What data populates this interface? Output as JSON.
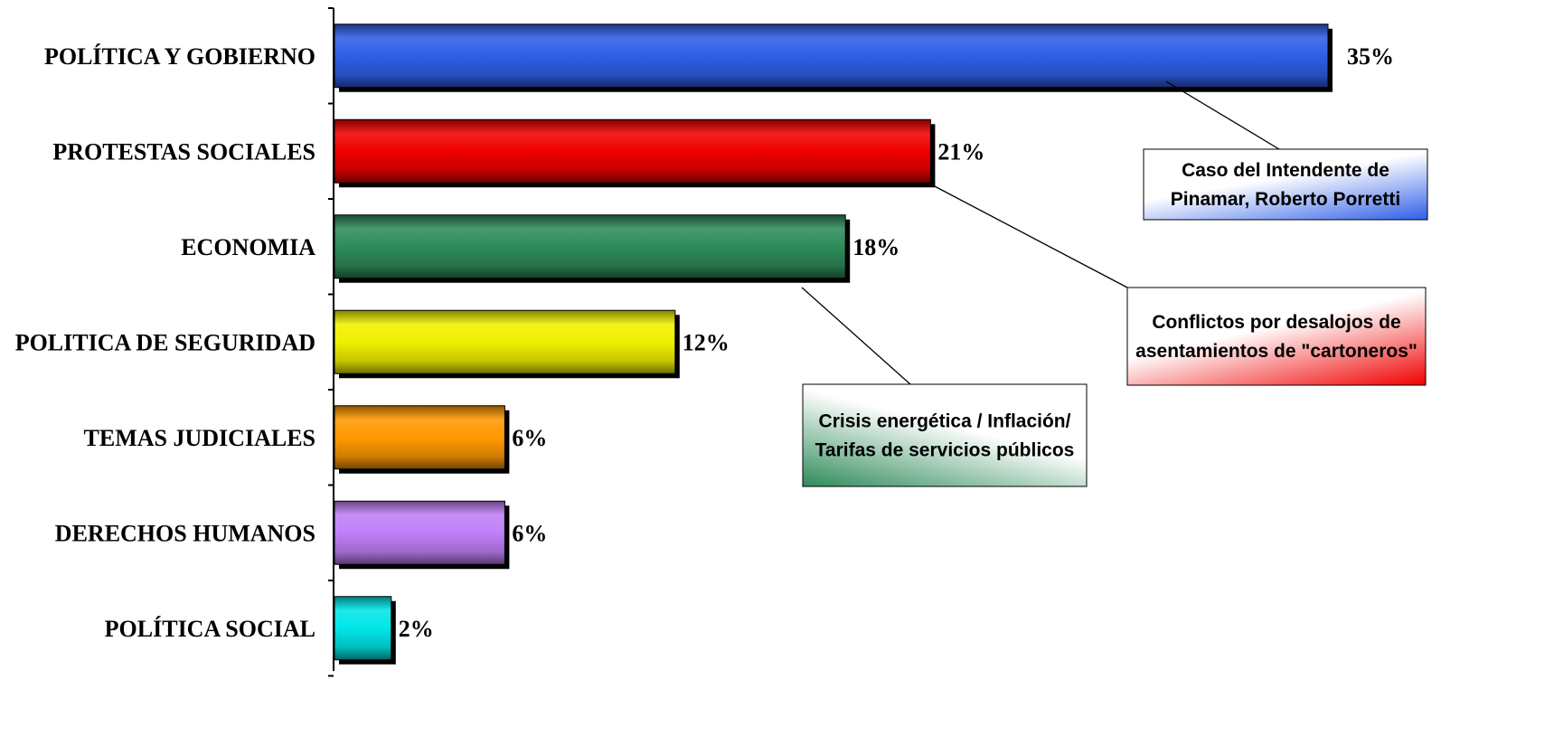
{
  "chart_data": {
    "type": "bar",
    "orientation": "horizontal",
    "categories": [
      "POLÍTICA Y GOBIERNO",
      "PROTESTAS SOCIALES",
      "ECONOMIA",
      "POLITICA DE SEGURIDAD",
      "TEMAS JUDICIALES",
      "DERECHOS HUMANOS",
      "POLÍTICA SOCIAL"
    ],
    "values": [
      35,
      21,
      18,
      12,
      6,
      6,
      2
    ],
    "value_labels": [
      "35%",
      "21%",
      "18%",
      "12%",
      "6%",
      "6%",
      "2%"
    ],
    "colors": [
      "#2f5fe8",
      "#f00000",
      "#2e8b5a",
      "#f0f000",
      "#ff9900",
      "#c080f8",
      "#00e6e6"
    ],
    "xlim": [
      0,
      35
    ],
    "grid": false,
    "legend": "none",
    "annotations": [
      {
        "category": "POLÍTICA Y GOBIERNO",
        "lines": [
          "Caso del  Intendente de",
          "Pinamar, Roberto Porretti"
        ],
        "color": "#2f5fe8"
      },
      {
        "category": "PROTESTAS SOCIALES",
        "lines": [
          "Conflictos por desalojos de",
          "asentamientos de \"cartoneros\""
        ],
        "color": "#f00000"
      },
      {
        "category": "ECONOMIA",
        "lines": [
          "Crisis energética / Inflación/",
          "Tarifas de servicios públicos"
        ],
        "color": "#2e8b5a"
      }
    ]
  }
}
